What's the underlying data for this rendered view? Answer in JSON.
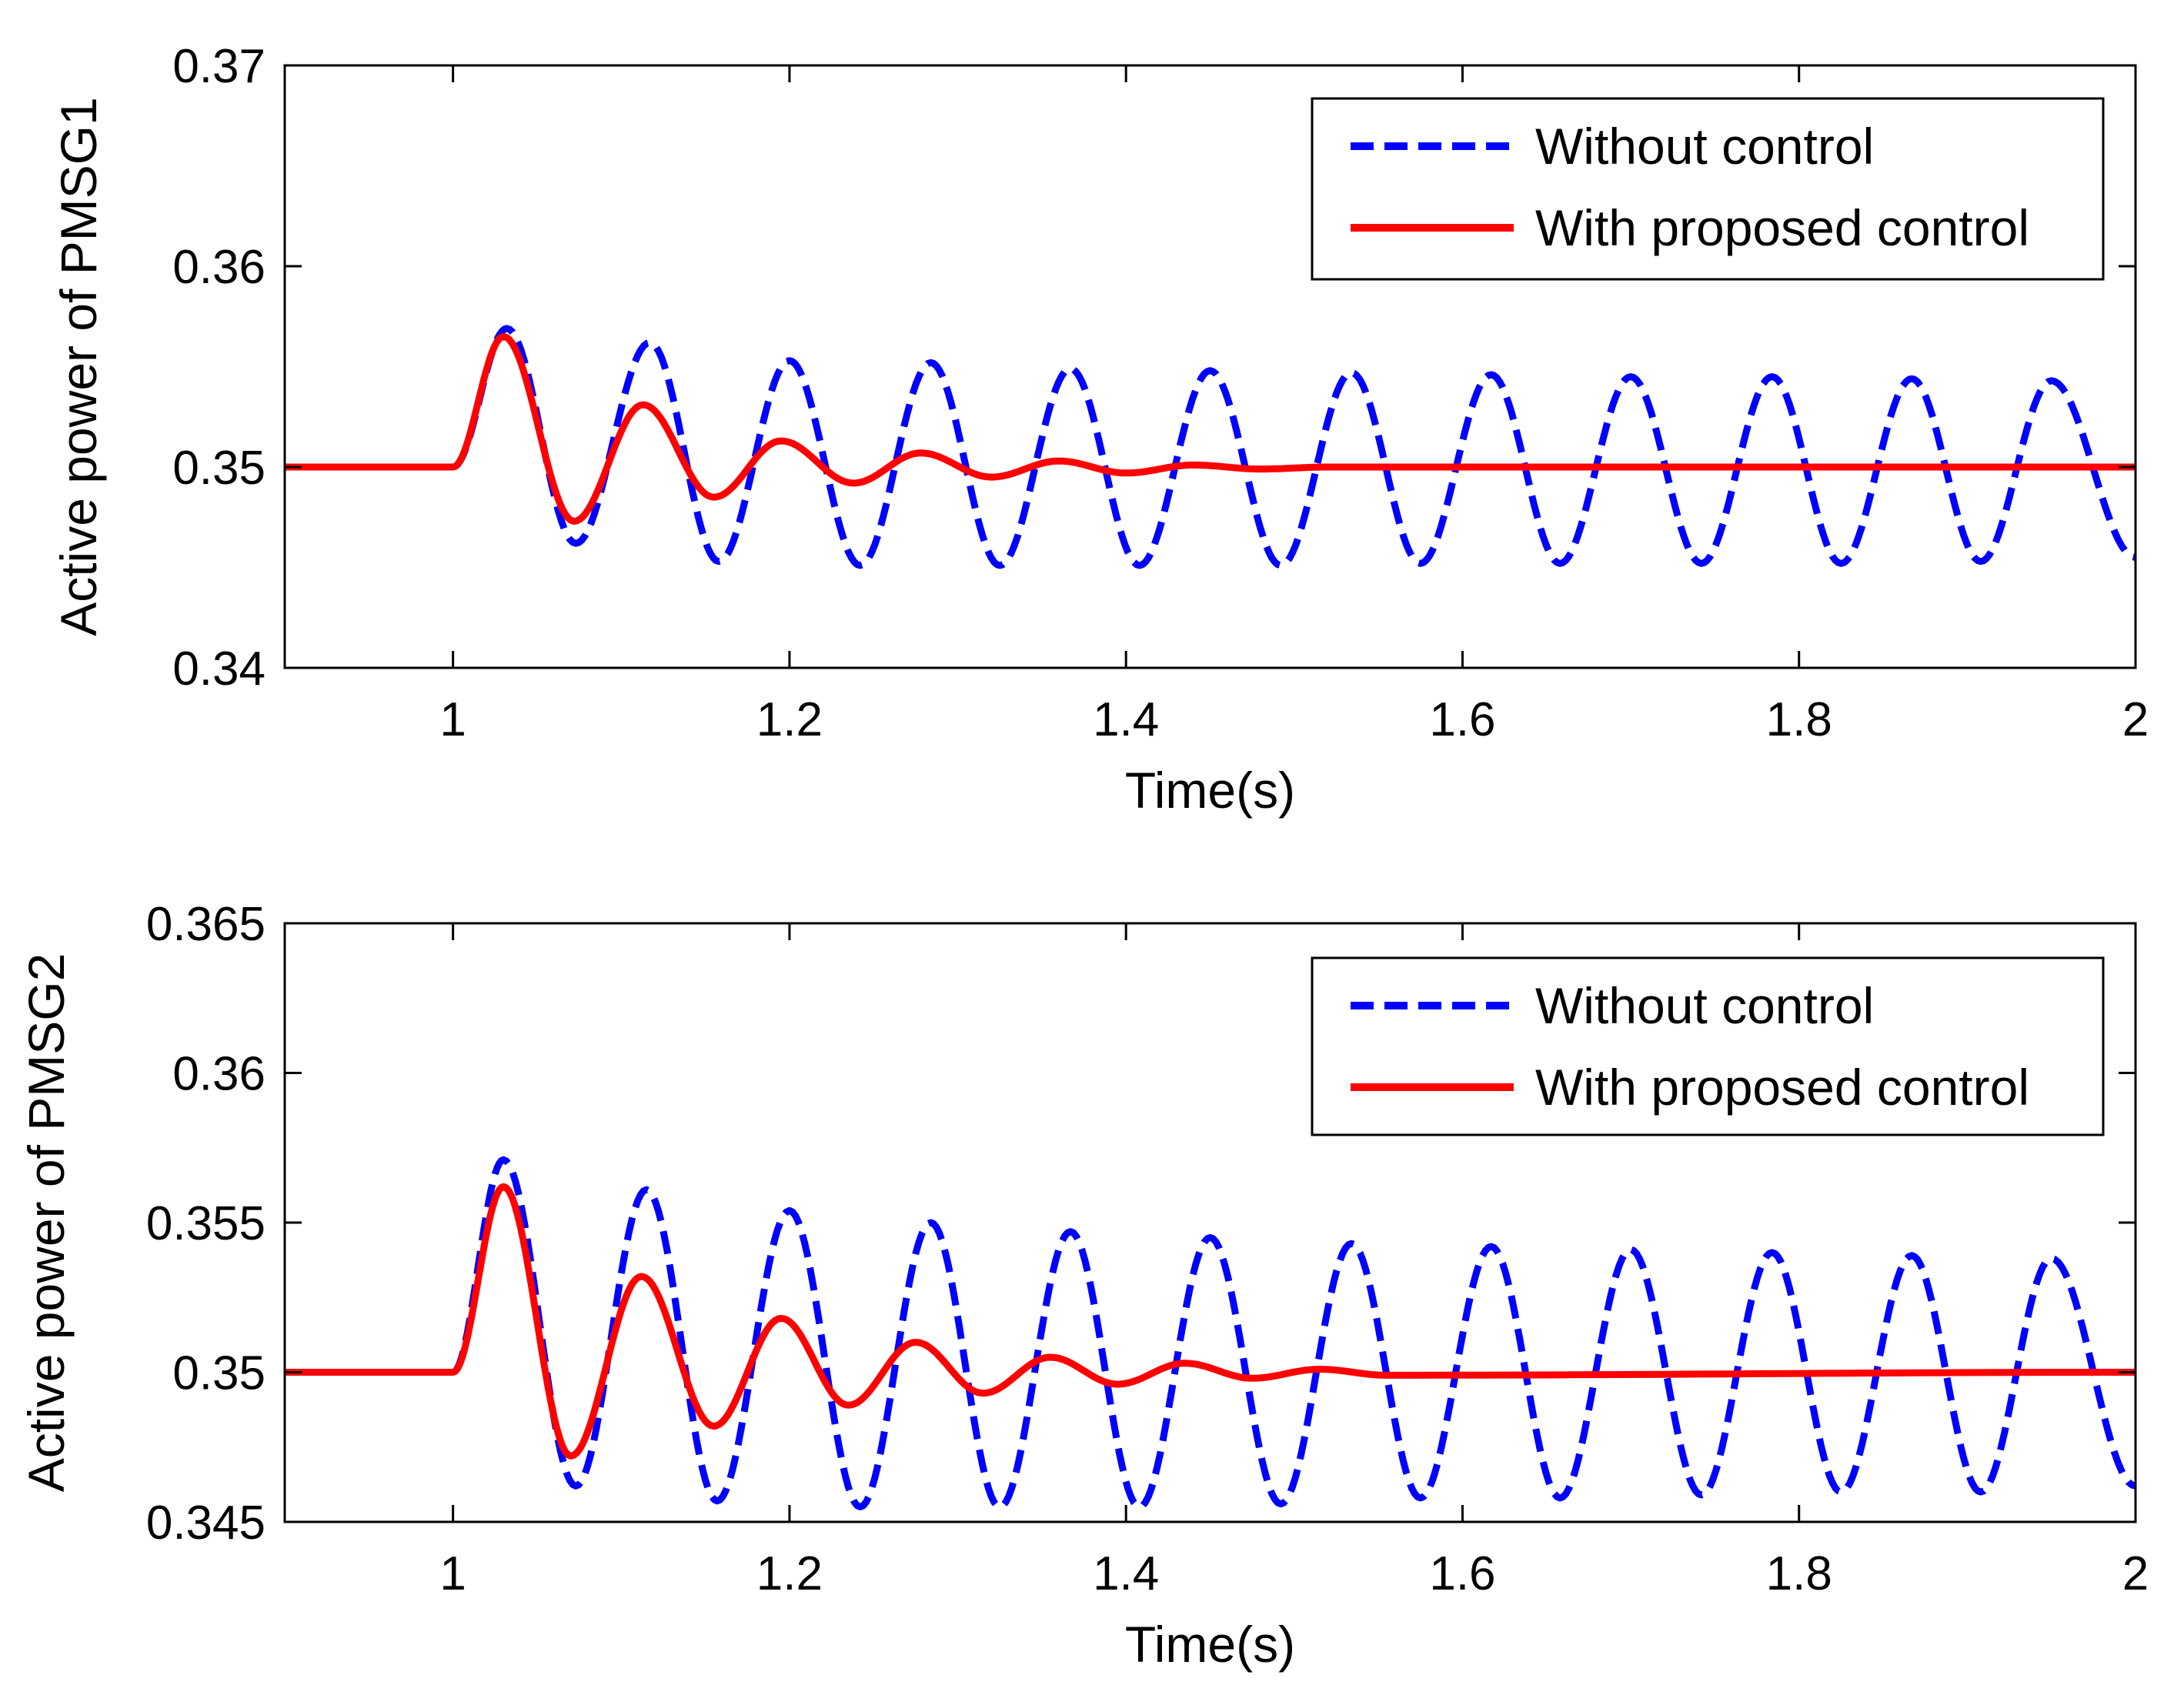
{
  "chart_data": [
    {
      "type": "line",
      "title": "",
      "xlabel": "Time(s)",
      "ylabel": "Active power of PMSG1",
      "xlim": [
        0.9,
        2.0
      ],
      "ylim": [
        0.34,
        0.37
      ],
      "xticks": [
        1,
        1.2,
        1.4,
        1.6,
        1.8,
        2
      ],
      "xtick_labels": [
        "1",
        "1.2",
        "1.4",
        "1.6",
        "1.8",
        "2"
      ],
      "yticks": [
        0.34,
        0.35,
        0.36,
        0.37
      ],
      "ytick_labels": [
        "0.34",
        "0.35",
        "0.36",
        "0.37"
      ],
      "grid": false,
      "legend_position": "top-right",
      "series": [
        {
          "name": "Without control",
          "color": "#0000ff",
          "style": "dashed",
          "x": [
            0.9,
            1.0,
            1.032,
            1.073,
            1.117,
            1.158,
            1.2,
            1.242,
            1.284,
            1.325,
            1.367,
            1.408,
            1.45,
            1.492,
            1.534,
            1.575,
            1.617,
            1.658,
            1.7,
            1.742,
            1.784,
            1.825,
            1.867,
            1.908,
            1.95,
            2.0
          ],
          "values": [
            0.35,
            0.35,
            0.3569,
            0.3462,
            0.3562,
            0.3453,
            0.3553,
            0.3451,
            0.3552,
            0.3451,
            0.3549,
            0.3451,
            0.3548,
            0.3451,
            0.3547,
            0.3452,
            0.3546,
            0.3452,
            0.3545,
            0.3452,
            0.3545,
            0.3452,
            0.3544,
            0.3453,
            0.3543,
            0.3455
          ]
        },
        {
          "name": "With proposed control",
          "color": "#ff0000",
          "style": "solid",
          "x": [
            0.9,
            1.0,
            1.03,
            1.072,
            1.113,
            1.155,
            1.195,
            1.238,
            1.278,
            1.32,
            1.36,
            1.4,
            1.44,
            1.48,
            1.52,
            2.0
          ],
          "values": [
            0.35,
            0.35,
            0.3565,
            0.3473,
            0.3531,
            0.3485,
            0.3513,
            0.3492,
            0.3507,
            0.3495,
            0.3503,
            0.3497,
            0.3501,
            0.3499,
            0.35,
            0.35
          ]
        }
      ]
    },
    {
      "type": "line",
      "title": "",
      "xlabel": "Time(s)",
      "ylabel": "Active power of PMSG2",
      "xlim": [
        0.9,
        2.0
      ],
      "ylim": [
        0.345,
        0.365
      ],
      "xticks": [
        1,
        1.2,
        1.4,
        1.6,
        1.8,
        2
      ],
      "xtick_labels": [
        "1",
        "1.2",
        "1.4",
        "1.6",
        "1.8",
        "2"
      ],
      "yticks": [
        0.345,
        0.35,
        0.355,
        0.36,
        0.365
      ],
      "ytick_labels": [
        "0.345",
        "0.35",
        "0.355",
        "0.36",
        "0.365"
      ],
      "grid": false,
      "legend_position": "top-right",
      "series": [
        {
          "name": "Without control",
          "color": "#0000ff",
          "style": "dashed",
          "x": [
            0.9,
            1.0,
            1.03,
            1.073,
            1.115,
            1.157,
            1.2,
            1.242,
            1.284,
            1.325,
            1.367,
            1.408,
            1.45,
            1.492,
            1.534,
            1.575,
            1.617,
            1.658,
            1.7,
            1.742,
            1.784,
            1.825,
            1.867,
            1.908,
            1.95,
            2.0
          ],
          "values": [
            0.35,
            0.35,
            0.3571,
            0.3462,
            0.3561,
            0.3457,
            0.3554,
            0.3455,
            0.355,
            0.3455,
            0.3547,
            0.3455,
            0.3545,
            0.3456,
            0.3543,
            0.3458,
            0.3542,
            0.3458,
            0.3541,
            0.3459,
            0.354,
            0.346,
            0.3539,
            0.346,
            0.3538,
            0.3462
          ]
        },
        {
          "name": "With proposed control",
          "color": "#ff0000",
          "style": "solid",
          "x": [
            0.9,
            1.0,
            1.03,
            1.07,
            1.112,
            1.155,
            1.195,
            1.235,
            1.275,
            1.315,
            1.355,
            1.395,
            1.435,
            1.475,
            1.515,
            1.555,
            2.0
          ],
          "values": [
            0.35,
            0.35,
            0.3562,
            0.3472,
            0.3532,
            0.3482,
            0.3518,
            0.3489,
            0.351,
            0.3493,
            0.3505,
            0.3496,
            0.3503,
            0.3498,
            0.3501,
            0.3499,
            0.35
          ]
        }
      ]
    }
  ]
}
